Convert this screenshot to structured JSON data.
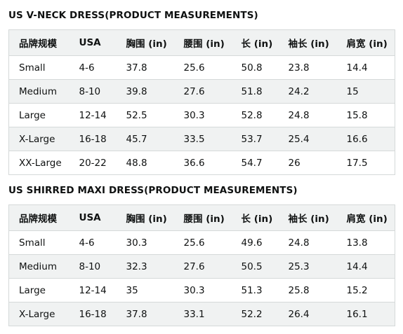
{
  "tables": [
    {
      "title": "US V-NECK DRESS(PRODUCT MEASUREMENTS)",
      "headers": [
        "品牌规模",
        "USA",
        "胸围 (in)",
        "腰围 (in)",
        "长 (in)",
        "袖长 (in)",
        "肩宽 (in)"
      ],
      "rows": [
        [
          "Small",
          "4-6",
          "37.8",
          "25.6",
          "50.8",
          "23.8",
          "14.4"
        ],
        [
          "Medium",
          "8-10",
          "39.8",
          "27.6",
          "51.8",
          "24.2",
          "15"
        ],
        [
          "Large",
          "12-14",
          "52.5",
          "30.3",
          "52.8",
          "24.8",
          "15.8"
        ],
        [
          "X-Large",
          "16-18",
          "45.7",
          "33.5",
          "53.7",
          "25.4",
          "16.6"
        ],
        [
          "XX-Large",
          "20-22",
          "48.8",
          "36.6",
          "54.7",
          "26",
          "17.5"
        ]
      ]
    },
    {
      "title": "US SHIRRED MAXI DRESS(PRODUCT MEASUREMENTS)",
      "headers": [
        "品牌规模",
        "USA",
        "胸围 (in)",
        "腰围 (in)",
        "长 (in)",
        "袖长 (in)",
        "肩宽 (in)"
      ],
      "rows": [
        [
          "Small",
          "4-6",
          "30.3",
          "25.6",
          "49.6",
          "24.8",
          "13.8"
        ],
        [
          "Medium",
          "8-10",
          "32.3",
          "27.6",
          "50.5",
          "25.3",
          "14.4"
        ],
        [
          "Large",
          "12-14",
          "35",
          "30.3",
          "51.3",
          "25.8",
          "15.2"
        ],
        [
          "X-Large",
          "16-18",
          "37.8",
          "33.1",
          "52.2",
          "26.4",
          "16.1"
        ]
      ]
    }
  ]
}
